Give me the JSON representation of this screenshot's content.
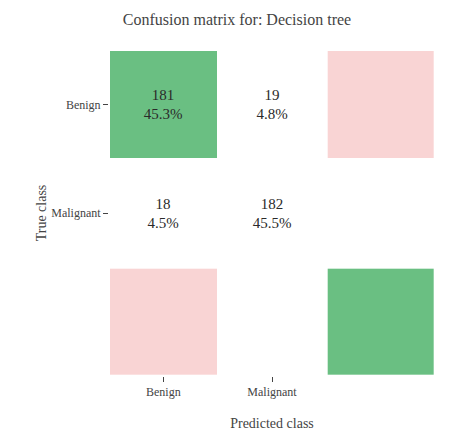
{
  "chart_data": {
    "type": "heatmap",
    "title": "Confusion matrix for: Decision tree",
    "xlabel": "Predicted class",
    "ylabel": "True class",
    "x": [
      "Benign",
      "Malignant"
    ],
    "y": [
      "Benign",
      "Malignant"
    ],
    "values": [
      [
        181,
        19
      ],
      [
        18,
        182
      ]
    ],
    "percentage_labels": [
      [
        "45.3%",
        "4.8%"
      ],
      [
        "4.5%",
        "45.5%"
      ]
    ],
    "colors": [
      [
        "#6abf82",
        "#f9d4d4"
      ],
      [
        "#f9d4d4",
        "#6abf82"
      ]
    ],
    "data_labels": true,
    "grid": false
  }
}
